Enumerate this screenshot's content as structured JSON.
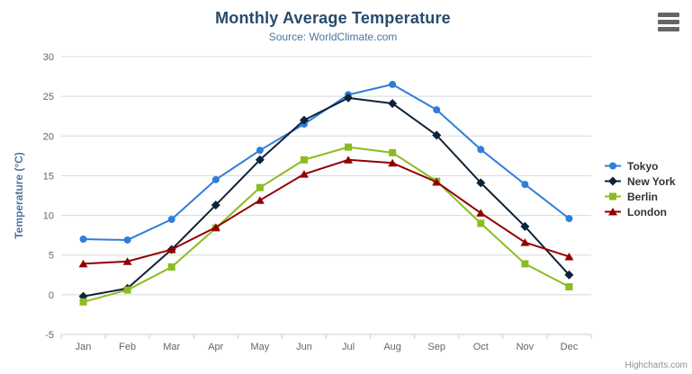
{
  "header": {
    "title": "Monthly Average Temperature",
    "subtitle": "Source: WorldClimate.com"
  },
  "credits": "Highcharts.com",
  "menu_icon": "hamburger-icon",
  "colors": {
    "background": "#ffffff",
    "title": "#274b6d",
    "subtitle": "#4d759e",
    "axis_title": "#4d759e",
    "tick_label": "#666666",
    "grid": "#d8d8d8",
    "axis_line": "#c0d0e0",
    "legend_label": "#333333",
    "credits": "#909090",
    "menu_icon": "#666666"
  },
  "chart_data": {
    "type": "line",
    "title": "Monthly Average Temperature",
    "subtitle": "Source: WorldClimate.com",
    "categories": [
      "Jan",
      "Feb",
      "Mar",
      "Apr",
      "May",
      "Jun",
      "Jul",
      "Aug",
      "Sep",
      "Oct",
      "Nov",
      "Dec"
    ],
    "series": [
      {
        "name": "Tokyo",
        "color": "#2f7ed8",
        "marker": "circle",
        "values": [
          7.0,
          6.9,
          9.5,
          14.5,
          18.2,
          21.5,
          25.2,
          26.5,
          23.3,
          18.3,
          13.9,
          9.6
        ]
      },
      {
        "name": "New York",
        "color": "#0d233a",
        "marker": "diamond",
        "values": [
          -0.2,
          0.8,
          5.7,
          11.3,
          17.0,
          22.0,
          24.8,
          24.1,
          20.1,
          14.1,
          8.6,
          2.5
        ]
      },
      {
        "name": "Berlin",
        "color": "#8bbc21",
        "marker": "square",
        "values": [
          -0.9,
          0.6,
          3.5,
          8.4,
          13.5,
          17.0,
          18.6,
          17.9,
          14.3,
          9.0,
          3.9,
          1.0
        ]
      },
      {
        "name": "London",
        "color": "#910000",
        "marker": "triangle",
        "values": [
          3.9,
          4.2,
          5.7,
          8.5,
          11.9,
          15.2,
          17.0,
          16.6,
          14.2,
          10.3,
          6.6,
          4.8
        ]
      }
    ],
    "xlabel": "",
    "ylabel": "Temperature (°C)",
    "ylim": [
      -5,
      30
    ],
    "ytick_step": 5,
    "grid": true,
    "legend_position": "right"
  }
}
